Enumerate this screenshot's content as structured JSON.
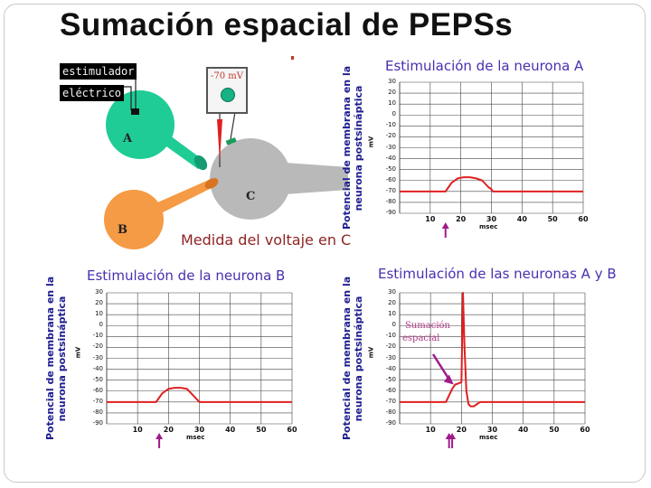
{
  "title": "Sumación espacial de PEPSs",
  "diagram": {
    "stimulator_line1": "estimulador",
    "stimulator_line2": "eléctrico",
    "meter_reading": "-70 mV",
    "neuron_a": "A",
    "neuron_b": "B",
    "neuron_c": "C",
    "caption": "Medida del voltaje en C",
    "colors": {
      "neuron_a": "#1fcc96",
      "neuron_b": "#f59a45",
      "neuron_c": "#b9b9b9",
      "trace": "#e02020",
      "arrow": "#a01b8c"
    }
  },
  "y_axis_label_line1": "Potencial de membrana en la",
  "y_axis_label_line2": "neurona postsináptica",
  "y_unit": "mV",
  "x_unit": "msec",
  "annotation_line1": "Sumación",
  "annotation_line2": "espacial",
  "chart_data": [
    {
      "type": "line",
      "title": "Estimulación de la neurona A",
      "ylabel": "Potencial de membrana en la neurona postsináptica",
      "yunit": "mV",
      "xunit": "msec",
      "yticks": [
        30,
        20,
        10,
        0,
        -10,
        -20,
        -30,
        -40,
        -50,
        -60,
        -70,
        -80,
        -90
      ],
      "xticks": [
        10,
        20,
        30,
        40,
        50,
        60
      ],
      "ylim": [
        -90,
        30
      ],
      "xlim": [
        0,
        60
      ],
      "stimulus_markers": [
        15
      ],
      "x": [
        0,
        15,
        16,
        17,
        19,
        21,
        23,
        25,
        27,
        28,
        29,
        30,
        30.5,
        60
      ],
      "y": [
        -70,
        -70,
        -66,
        -62,
        -58,
        -57,
        -57,
        -58,
        -60,
        -63,
        -66,
        -68,
        -70,
        -70
      ]
    },
    {
      "type": "line",
      "title": "Estimulación de la neurona B",
      "ylabel": "Potencial de membrana en la neurona postsináptica",
      "yunit": "mV",
      "xunit": "msec",
      "yticks": [
        30,
        20,
        10,
        0,
        -10,
        -20,
        -30,
        -40,
        -50,
        -60,
        -70,
        -80,
        -90
      ],
      "xticks": [
        10,
        20,
        30,
        40,
        50,
        60
      ],
      "ylim": [
        -90,
        30
      ],
      "xlim": [
        0,
        60
      ],
      "stimulus_markers": [
        17
      ],
      "x": [
        0,
        16,
        17,
        18,
        20,
        22,
        24,
        26,
        27,
        28,
        29,
        30,
        60
      ],
      "y": [
        -70,
        -70,
        -66,
        -62,
        -58,
        -57,
        -57,
        -58,
        -61,
        -64,
        -67,
        -70,
        -70
      ]
    },
    {
      "type": "line",
      "title": "Estimulación de las neuronas A y B",
      "ylabel": "Potencial de membrana en la neurona postsináptica",
      "yunit": "mV",
      "xunit": "msec",
      "yticks": [
        30,
        20,
        10,
        0,
        -10,
        -20,
        -30,
        -40,
        -50,
        -60,
        -70,
        -80,
        -90
      ],
      "xticks": [
        10,
        20,
        30,
        40,
        50,
        60
      ],
      "ylim": [
        -90,
        30
      ],
      "xlim": [
        0,
        60
      ],
      "stimulus_markers": [
        16,
        17
      ],
      "annotation": "Sumación espacial",
      "x": [
        0,
        15,
        16,
        17,
        18,
        19,
        20,
        20.5,
        21,
        21.6,
        22.3,
        23,
        24,
        25,
        26,
        27,
        60
      ],
      "y": [
        -70,
        -70,
        -64,
        -58,
        -54,
        -53,
        -52,
        30,
        -20,
        -60,
        -72,
        -74,
        -74,
        -72,
        -70,
        -70,
        -70
      ]
    }
  ]
}
